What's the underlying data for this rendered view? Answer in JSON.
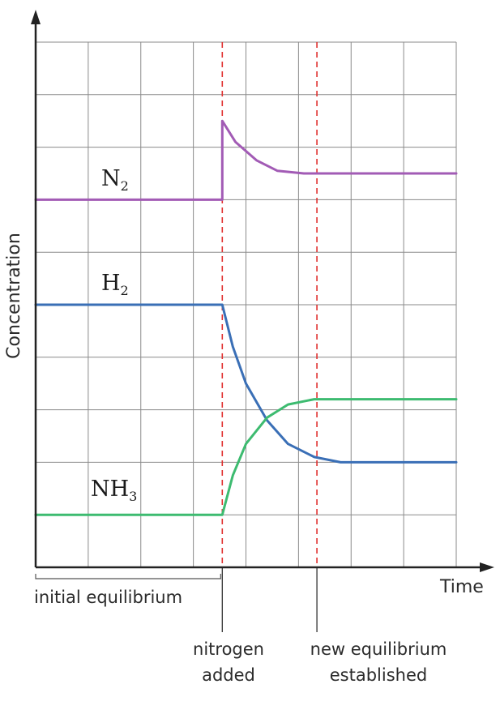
{
  "chart_data": {
    "type": "line",
    "xlabel": "Time",
    "ylabel": "Concentration",
    "xlim": [
      0,
      8
    ],
    "ylim": [
      0,
      10
    ],
    "grid": true,
    "series": [
      {
        "name": "N",
        "subscript": "2",
        "color": "#a25bb5",
        "points": [
          [
            0,
            7
          ],
          [
            3.55,
            7
          ],
          [
            3.55,
            8.5
          ],
          [
            3.8,
            8.1
          ],
          [
            4.2,
            7.75
          ],
          [
            4.6,
            7.55
          ],
          [
            5.1,
            7.5
          ],
          [
            8,
            7.5
          ]
        ]
      },
      {
        "name": "H",
        "subscript": "2",
        "color": "#3a6fb6",
        "points": [
          [
            0,
            5
          ],
          [
            3.55,
            5
          ],
          [
            3.75,
            4.2
          ],
          [
            4.0,
            3.5
          ],
          [
            4.4,
            2.8
          ],
          [
            4.8,
            2.35
          ],
          [
            5.3,
            2.1
          ],
          [
            5.8,
            2.0
          ],
          [
            8,
            2.0
          ]
        ]
      },
      {
        "name": "NH",
        "subscript": "3",
        "color": "#3dbb70",
        "points": [
          [
            0,
            1
          ],
          [
            3.55,
            1
          ],
          [
            3.75,
            1.75
          ],
          [
            4.0,
            2.35
          ],
          [
            4.4,
            2.85
          ],
          [
            4.8,
            3.1
          ],
          [
            5.3,
            3.2
          ],
          [
            8,
            3.2
          ]
        ]
      }
    ],
    "markers": [
      {
        "x": 3.55,
        "label_lines": [
          "nitrogen",
          "added"
        ]
      },
      {
        "x": 5.35,
        "label_lines": [
          "new equilibrium",
          "established"
        ]
      }
    ],
    "annotations": {
      "initial_label": "initial equilibrium"
    }
  }
}
